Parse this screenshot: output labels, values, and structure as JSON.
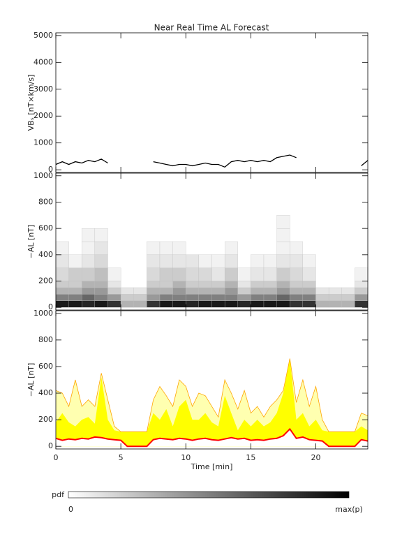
{
  "chart_data": [
    {
      "type": "line",
      "title": "Near Real Time AL Forecast",
      "ylabel": "VBₛ [nT×km/s]",
      "color": "#000000",
      "xlim": [
        0,
        24
      ],
      "ylim": [
        -100,
        5100
      ],
      "yticks": [
        0,
        1000,
        2000,
        3000,
        4000,
        5000
      ],
      "x": [
        0,
        0.5,
        1,
        1.5,
        2,
        2.5,
        3,
        3.5,
        4,
        4.5,
        5,
        5.5,
        6,
        6.5,
        7,
        7.5,
        8,
        8.5,
        9,
        9.5,
        10,
        10.5,
        11,
        11.5,
        12,
        12.5,
        13,
        13.5,
        14,
        14.5,
        15,
        15.5,
        16,
        16.5,
        17,
        17.5,
        18,
        18.5,
        19,
        19.5,
        20,
        20.5,
        21,
        21.5,
        22,
        22.5,
        23,
        23.5,
        24
      ],
      "values": [
        200,
        300,
        200,
        300,
        250,
        350,
        300,
        400,
        250,
        null,
        null,
        null,
        null,
        null,
        null,
        300,
        250,
        200,
        150,
        200,
        200,
        150,
        200,
        250,
        200,
        200,
        100,
        300,
        350,
        300,
        350,
        300,
        350,
        300,
        450,
        500,
        550,
        450,
        null,
        null,
        null,
        null,
        null,
        null,
        null,
        null,
        null,
        150,
        350
      ]
    },
    {
      "type": "heatmap",
      "ylabel": "−AL [nT]",
      "xlim": [
        0,
        24
      ],
      "ylim": [
        -20,
        1020
      ],
      "yticks": [
        0,
        200,
        400,
        600,
        800,
        1000
      ],
      "x_bins": [
        0,
        1,
        2,
        3,
        4,
        5,
        6,
        7,
        8,
        9,
        10,
        11,
        12,
        13,
        14,
        15,
        16,
        17,
        18,
        19,
        20,
        21,
        22,
        23,
        24
      ],
      "y_bins": [
        0,
        50,
        100,
        150,
        200,
        300,
        400,
        500,
        600,
        700
      ],
      "z": [
        [
          0.9,
          0.9,
          0.85,
          0.9,
          0.8,
          0.3,
          0.3,
          0.8,
          0.9,
          0.9,
          0.85,
          0.9,
          0.9,
          0.9,
          0.85,
          0.9,
          0.9,
          0.9,
          0.8,
          0.8,
          0.3,
          0.3,
          0.3,
          0.8
        ],
        [
          0.5,
          0.5,
          0.6,
          0.5,
          0.4,
          0.2,
          0.2,
          0.4,
          0.5,
          0.5,
          0.5,
          0.5,
          0.5,
          0.5,
          0.4,
          0.5,
          0.5,
          0.6,
          0.5,
          0.5,
          0.2,
          0.2,
          0.2,
          0.4
        ],
        [
          0.3,
          0.3,
          0.4,
          0.4,
          0.2,
          0.1,
          0.1,
          0.3,
          0.3,
          0.4,
          0.3,
          0.3,
          0.3,
          0.4,
          0.2,
          0.3,
          0.3,
          0.4,
          0.3,
          0.3,
          0.1,
          0.1,
          0.1,
          0.2
        ],
        [
          0.2,
          0.2,
          0.3,
          0.3,
          0.1,
          0,
          0,
          0.2,
          0.2,
          0.3,
          0.2,
          0.2,
          0.2,
          0.3,
          0.1,
          0.2,
          0.2,
          0.3,
          0.2,
          0.2,
          0,
          0,
          0,
          0.1
        ],
        [
          0.15,
          0.2,
          0.2,
          0.25,
          0.05,
          0,
          0,
          0.15,
          0.2,
          0.2,
          0.15,
          0.15,
          0.1,
          0.2,
          0.05,
          0.1,
          0.1,
          0.2,
          0.15,
          0.1,
          0,
          0,
          0,
          0.05
        ],
        [
          0.1,
          0.05,
          0.1,
          0.15,
          0,
          0,
          0,
          0.1,
          0.1,
          0.1,
          0.1,
          0.05,
          0.05,
          0.1,
          0,
          0.05,
          0.05,
          0.1,
          0.1,
          0.05,
          0,
          0,
          0,
          0
        ],
        [
          0.05,
          0,
          0.05,
          0.1,
          0,
          0,
          0,
          0.05,
          0.05,
          0.05,
          0,
          0,
          0,
          0.05,
          0,
          0,
          0,
          0.05,
          0.05,
          0,
          0,
          0,
          0,
          0
        ],
        [
          0,
          0,
          0.05,
          0.05,
          0,
          0,
          0,
          0,
          0,
          0,
          0,
          0,
          0,
          0,
          0,
          0,
          0,
          0.05,
          0,
          0,
          0,
          0,
          0,
          0
        ],
        [
          0,
          0,
          0,
          0,
          0,
          0,
          0,
          0,
          0,
          0,
          0,
          0,
          0,
          0,
          0,
          0,
          0,
          0.05,
          0,
          0,
          0,
          0,
          0,
          0
        ]
      ],
      "colorbar": {
        "label": "pdf",
        "range": [
          0,
          1
        ],
        "ticks": [
          0,
          {
            "value": 1,
            "label": "max(p)"
          }
        ]
      }
    },
    {
      "type": "area",
      "ylabel": "−AL [nT]",
      "xlabel": "Time [min]",
      "xlim": [
        0,
        24
      ],
      "ylim": [
        -20,
        1020
      ],
      "xticks": [
        0,
        5,
        10,
        15,
        20
      ],
      "yticks": [
        0,
        200,
        400,
        600,
        800,
        1000
      ],
      "x": [
        0,
        0.5,
        1,
        1.5,
        2,
        2.5,
        3,
        3.5,
        4,
        4.5,
        5,
        5.5,
        6,
        6.5,
        7,
        7.5,
        8,
        8.5,
        9,
        9.5,
        10,
        10.5,
        11,
        11.5,
        12,
        12.5,
        13,
        13.5,
        14,
        14.5,
        15,
        15.5,
        16,
        16.5,
        17,
        17.5,
        18,
        18.5,
        19,
        19.5,
        20,
        20.5,
        21,
        21.5,
        22,
        22.5,
        23,
        23.5,
        24
      ],
      "max": {
        "color": "#ffa500",
        "fill": "#ffffb0",
        "values": [
          420,
          400,
          300,
          500,
          300,
          350,
          300,
          550,
          350,
          150,
          110,
          110,
          110,
          110,
          110,
          350,
          450,
          380,
          300,
          500,
          450,
          300,
          400,
          380,
          300,
          220,
          500,
          400,
          280,
          420,
          250,
          300,
          220,
          300,
          350,
          420,
          660,
          330,
          500,
          300,
          450,
          200,
          110,
          110,
          110,
          110,
          110,
          250,
          230
        ]
      },
      "q75": {
        "color": "#ffff00",
        "values": [
          180,
          250,
          180,
          150,
          200,
          220,
          170,
          520,
          200,
          120,
          110,
          110,
          110,
          110,
          110,
          250,
          200,
          280,
          150,
          300,
          350,
          200,
          200,
          250,
          180,
          150,
          380,
          250,
          120,
          200,
          150,
          200,
          150,
          180,
          250,
          400,
          660,
          200,
          250,
          150,
          200,
          120,
          110,
          110,
          110,
          110,
          110,
          150,
          120
        ]
      },
      "median": {
        "color": "#ff0000",
        "values": [
          60,
          45,
          55,
          50,
          60,
          55,
          70,
          65,
          55,
          50,
          45,
          0,
          0,
          0,
          0,
          50,
          60,
          55,
          50,
          60,
          55,
          45,
          55,
          60,
          50,
          45,
          55,
          65,
          55,
          60,
          45,
          50,
          45,
          55,
          60,
          80,
          130,
          60,
          70,
          50,
          45,
          40,
          0,
          0,
          0,
          0,
          0,
          50,
          40
        ]
      }
    }
  ]
}
